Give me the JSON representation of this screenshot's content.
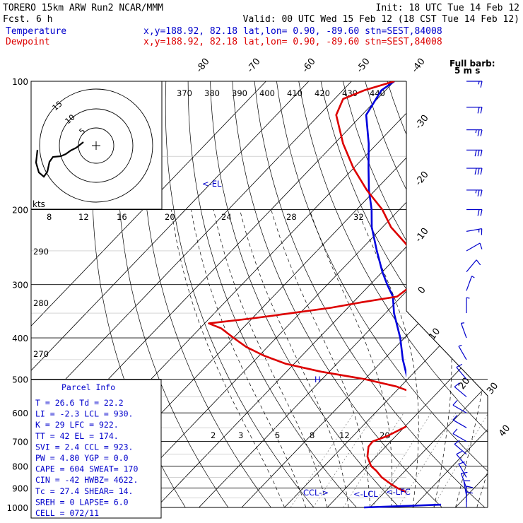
{
  "header": {
    "model": "TORERO  15km ARW   Run2    NCAR/MMM",
    "init": "Init: 18 UTC Tue 14 Feb 12",
    "fcst": "Fcst.    6 h",
    "valid": "Valid: 00 UTC Wed 15 Feb 12 (18 CST Tue 14 Feb 12)",
    "temp_label": "Temperature",
    "dew_label": "Dewpoint",
    "temp_loc": "x,y=188.92, 82.18   lat,lon=  0.90, -89.60  stn=SEST,84008",
    "dew_loc": "x,y=188.92, 82.18   lat,lon=  0.90, -89.60  stn=SEST,84008",
    "barb_label": "Full barb:",
    "barb_unit": "5 m s",
    "kts": "kts"
  },
  "parcel": {
    "title": "Parcel Info",
    "rows": [
      "T   =   26.6  Td =  22.2",
      "LI  =   -2.3  LCL =  930.",
      "K   =     29  LFC =  922.",
      "TT  =     42  EL  =  174.",
      "SVI =    2.4  CCL =  923.",
      "PW  =   4.80  YGP =   0.0",
      "CAPE =   604  SWEAT=   170",
      "CIN  =   -42  HWBZ= 4622.",
      "Tc  =   27.4  SHEAR=   14.",
      "SREH =     0  LAPSE=  6.0",
      "CELL = 072/11"
    ]
  },
  "colors": {
    "temperature": "#0000dd",
    "dewpoint": "#dd0000",
    "label_blue": "#0000cc"
  },
  "chart_data": {
    "type": "line",
    "subtype": "skew-T log-p sounding",
    "yscale": "log",
    "y_unit": "hPa",
    "pressure_levels": [
      100,
      200,
      300,
      400,
      500,
      600,
      700,
      800,
      900,
      1000
    ],
    "isotherm_labels": [
      "-80",
      "-70",
      "-60",
      "-50",
      "-40",
      "-30",
      "-20",
      "-10",
      "0",
      "10",
      "20",
      "30",
      "40"
    ],
    "theta_labels": [
      "370",
      "380",
      "390",
      "400",
      "410",
      "420",
      "430",
      "440"
    ],
    "mixing_ratio_labels": [
      "2",
      "3",
      "5",
      "8",
      "12",
      "20"
    ],
    "wetbulb_labels": [
      "8",
      "12",
      "16",
      "20",
      "24",
      "28",
      "32"
    ],
    "dry_adiabat_labels": [
      "290",
      "280",
      "270"
    ],
    "level_marks": {
      "el": "<-EL",
      "ccl": "CCL->",
      "lcl": "<-LCL",
      "lfc": "<-LFC",
      "h": "H"
    },
    "series": [
      {
        "name": "Temperature",
        "p": [
          985,
          960,
          940,
          920,
          900,
          850,
          800,
          750,
          700,
          650,
          600,
          550,
          500,
          450,
          400,
          350,
          320,
          300,
          280,
          250,
          220,
          200,
          180,
          160,
          140,
          120,
          105,
          100
        ],
        "t": [
          26,
          24.5,
          23,
          21.6,
          20.5,
          17,
          13.5,
          10.5,
          7.5,
          3.5,
          -0.5,
          -5,
          -10,
          -15.5,
          -21,
          -28,
          -32,
          -36,
          -40,
          -46,
          -52.5,
          -56.5,
          -61.5,
          -66.5,
          -72,
          -79,
          -81,
          -80
        ]
      },
      {
        "name": "Dewpoint",
        "p": [
          995,
          980,
          965,
          950,
          935,
          920,
          900,
          880,
          850,
          820,
          800,
          760,
          720,
          700,
          680,
          650,
          620,
          600,
          580,
          560,
          540,
          520,
          500,
          480,
          460,
          440,
          420,
          400,
          380,
          370,
          360,
          350,
          340,
          330,
          320,
          300,
          280,
          260,
          250,
          240,
          220,
          200,
          180,
          160,
          140,
          120,
          110,
          105,
          100
        ],
        "t": [
          22,
          22.5,
          22.5,
          20,
          18,
          15,
          12,
          9.5,
          6,
          3.2,
          1,
          -2,
          -4,
          -4.2,
          -2,
          0,
          2,
          2,
          1,
          -1,
          -5,
          -11,
          -20,
          -32,
          -42,
          -49,
          -55,
          -60,
          -65,
          -69,
          -60,
          -52,
          -44,
          -38,
          -31,
          -30,
          -32,
          -35,
          -38,
          -41,
          -48,
          -54,
          -62,
          -70,
          -78,
          -86,
          -88,
          -85,
          -80
        ]
      }
    ],
    "wind_barbs": [
      {
        "p": 100,
        "dir": 270,
        "kt": 15
      },
      {
        "p": 115,
        "dir": 270,
        "kt": 20
      },
      {
        "p": 130,
        "dir": 270,
        "kt": 25
      },
      {
        "p": 145,
        "dir": 270,
        "kt": 30
      },
      {
        "p": 160,
        "dir": 270,
        "kt": 30
      },
      {
        "p": 180,
        "dir": 270,
        "kt": 25
      },
      {
        "p": 200,
        "dir": 270,
        "kt": 20
      },
      {
        "p": 225,
        "dir": 260,
        "kt": 15
      },
      {
        "p": 250,
        "dir": 240,
        "kt": 10
      },
      {
        "p": 280,
        "dir": 220,
        "kt": 10
      },
      {
        "p": 310,
        "dir": 200,
        "kt": 5
      },
      {
        "p": 350,
        "dir": 180,
        "kt": 5
      },
      {
        "p": 400,
        "dir": 160,
        "kt": 5
      },
      {
        "p": 450,
        "dir": 150,
        "kt": 5
      },
      {
        "p": 500,
        "dir": 140,
        "kt": 10
      },
      {
        "p": 550,
        "dir": 130,
        "kt": 10
      },
      {
        "p": 600,
        "dir": 120,
        "kt": 10
      },
      {
        "p": 650,
        "dir": 120,
        "kt": 10
      },
      {
        "p": 700,
        "dir": 120,
        "kt": 10
      },
      {
        "p": 750,
        "dir": 130,
        "kt": 10
      },
      {
        "p": 800,
        "dir": 140,
        "kt": 10
      },
      {
        "p": 850,
        "dir": 150,
        "kt": 10
      },
      {
        "p": 900,
        "dir": 160,
        "kt": 10
      },
      {
        "p": 940,
        "dir": 170,
        "kt": 10
      },
      {
        "p": 970,
        "dir": 180,
        "kt": 10
      },
      {
        "p": 1000,
        "dir": 180,
        "kt": 10
      }
    ],
    "hodograph": {
      "range_labels": [
        "5",
        "10",
        "15"
      ],
      "u": [
        0,
        -1,
        -3,
        -5,
        -8,
        -10,
        -12,
        -14,
        -17,
        -18,
        -19,
        -20
      ],
      "v": [
        0,
        -1,
        -2,
        -3,
        -3,
        -4,
        -5,
        -6,
        -7,
        -8,
        -10,
        -12
      ]
    }
  }
}
